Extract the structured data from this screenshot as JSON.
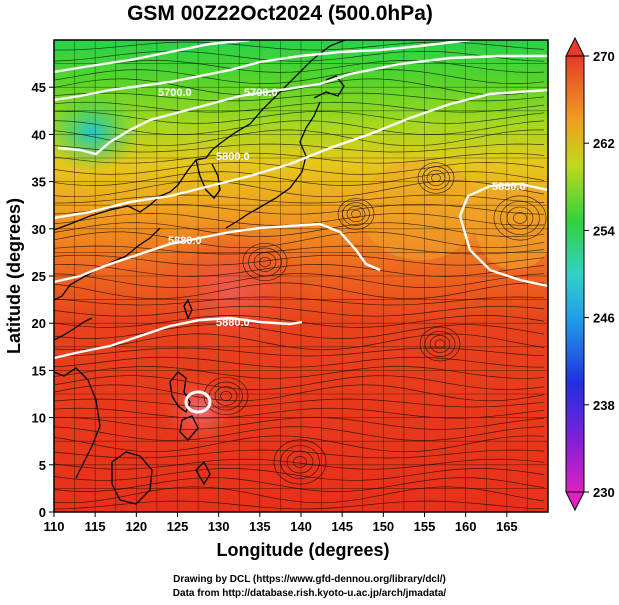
{
  "title": "GSM 00Z22Oct2024 (500.0hPa)",
  "xlabel": "Longitude (degrees)",
  "ylabel": "Latitude  (degrees)",
  "x_ticks": [
    "110",
    "115",
    "120",
    "125",
    "130",
    "135",
    "140",
    "145",
    "150",
    "155",
    "160",
    "165"
  ],
  "y_ticks": [
    "0",
    "5",
    "10",
    "15",
    "20",
    "25",
    "30",
    "35",
    "40",
    "45"
  ],
  "colorbar_ticks": [
    "270",
    "262",
    "254",
    "246",
    "238",
    "230"
  ],
  "contour_labels": [
    "5700.0",
    "5700.0",
    "5800.0",
    "5880.0",
    "5880.0",
    "5880.0"
  ],
  "credits": {
    "line1": "Drawing by DCL (https://www.gfd-dennou.org/library/dcl/)",
    "line2": "Data from http://database.rish.kyoto-u.ac.jp/arch/jmadata/"
  },
  "map": {
    "lon_range": [
      110,
      170
    ],
    "lat_range": [
      0,
      50
    ],
    "colorbar_range": [
      230,
      270
    ],
    "colors": {
      "warm": "#e8321c",
      "orange": "#f08a1e",
      "yellow": "#e6d21e",
      "green": "#30d23c",
      "cyan": "#30d2c8",
      "magenta": "#e020c0",
      "coast": "#000000",
      "contour": "#ffffff"
    }
  }
}
